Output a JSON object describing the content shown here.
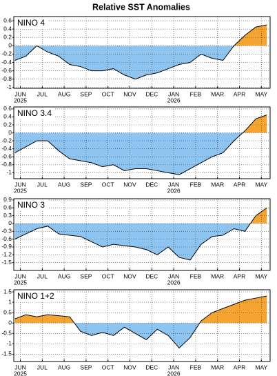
{
  "title": "Relative SST Anomalies",
  "chart_data": [
    {
      "type": "area",
      "title": "NINO 4",
      "x": [
        -0.25,
        0.25,
        0.75,
        1.25,
        1.75,
        2.25,
        2.75,
        3.25,
        3.75,
        4.25,
        4.75,
        5.25,
        5.75,
        6.25,
        6.75,
        7.25,
        7.75,
        8.25,
        8.75,
        9.25,
        9.75,
        10.25,
        10.75,
        11.25
      ],
      "values": [
        -0.35,
        -0.25,
        0.0,
        -0.15,
        -0.25,
        -0.45,
        -0.5,
        -0.6,
        -0.6,
        -0.55,
        -0.7,
        -0.8,
        -0.7,
        -0.65,
        -0.55,
        -0.45,
        -0.4,
        -0.2,
        -0.3,
        -0.35,
        0.0,
        0.25,
        0.45,
        0.5
      ],
      "positive_color": "#f5a431",
      "negative_color": "#8ec4f0",
      "xlim": [
        -0.3,
        11.4
      ],
      "xticks": [
        {
          "value": 0,
          "label": "JUN"
        },
        {
          "value": 1,
          "label": "JUL"
        },
        {
          "value": 2,
          "label": "AUG"
        },
        {
          "value": 3,
          "label": "SEP"
        },
        {
          "value": 4,
          "label": "OCT"
        },
        {
          "value": 5,
          "label": "NOV"
        },
        {
          "value": 6,
          "label": "DEC"
        },
        {
          "value": 7,
          "label": "JAN"
        },
        {
          "value": 8,
          "label": "FEB"
        },
        {
          "value": 9,
          "label": "MAR"
        },
        {
          "value": 10,
          "label": "APR"
        },
        {
          "value": 11,
          "label": "MAY"
        }
      ],
      "year_labels": [
        {
          "value": 0,
          "label": "2025"
        },
        {
          "value": 7,
          "label": "2026"
        }
      ],
      "ylim": [
        -1.02,
        0.7
      ],
      "yticks": [
        0.6,
        0.4,
        0.2,
        0,
        -0.2,
        -0.4,
        -0.6,
        -0.8,
        -1
      ],
      "grid": true
    },
    {
      "type": "area",
      "title": "NINO 3.4",
      "x": [
        -0.25,
        0.25,
        0.75,
        1.25,
        1.75,
        2.25,
        2.75,
        3.25,
        3.75,
        4.25,
        4.75,
        5.25,
        5.75,
        6.25,
        6.75,
        7.25,
        7.75,
        8.25,
        8.75,
        9.25,
        9.75,
        10.25,
        10.75,
        11.25
      ],
      "values": [
        -0.5,
        -0.35,
        -0.2,
        -0.2,
        -0.45,
        -0.65,
        -0.7,
        -0.75,
        -0.85,
        -0.8,
        -0.95,
        -0.9,
        -0.9,
        -0.95,
        -1.0,
        -1.05,
        -0.9,
        -0.75,
        -0.6,
        -0.5,
        -0.2,
        0.05,
        0.35,
        0.45
      ],
      "positive_color": "#f5a431",
      "negative_color": "#8ec4f0",
      "xlim": [
        -0.3,
        11.4
      ],
      "xticks": [
        {
          "value": 0,
          "label": "JUN"
        },
        {
          "value": 1,
          "label": "JUL"
        },
        {
          "value": 2,
          "label": "AUG"
        },
        {
          "value": 3,
          "label": "SEP"
        },
        {
          "value": 4,
          "label": "OCT"
        },
        {
          "value": 5,
          "label": "NOV"
        },
        {
          "value": 6,
          "label": "DEC"
        },
        {
          "value": 7,
          "label": "JAN"
        },
        {
          "value": 8,
          "label": "FEB"
        },
        {
          "value": 9,
          "label": "MAR"
        },
        {
          "value": 10,
          "label": "APR"
        },
        {
          "value": 11,
          "label": "MAY"
        }
      ],
      "year_labels": [
        {
          "value": 0,
          "label": "2025"
        },
        {
          "value": 7,
          "label": "2026"
        }
      ],
      "ylim": [
        -1.15,
        0.65
      ],
      "yticks": [
        0.6,
        0.4,
        0.2,
        0,
        -0.2,
        -0.4,
        -0.6,
        -0.8,
        -1
      ],
      "grid": true
    },
    {
      "type": "area",
      "title": "NINO 3",
      "x": [
        -0.25,
        0.25,
        0.75,
        1.25,
        1.75,
        2.25,
        2.75,
        3.25,
        3.75,
        4.25,
        4.75,
        5.25,
        5.75,
        6.25,
        6.75,
        7.25,
        7.75,
        8.25,
        8.75,
        9.25,
        9.75,
        10.25,
        10.75,
        11.25
      ],
      "values": [
        -0.6,
        -0.4,
        -0.2,
        -0.1,
        -0.4,
        -0.45,
        -0.5,
        -0.7,
        -0.9,
        -0.8,
        -0.85,
        -0.9,
        -1.0,
        -1.2,
        -0.9,
        -1.3,
        -1.4,
        -0.8,
        -0.5,
        -0.45,
        -0.2,
        -0.3,
        0.3,
        0.6
      ],
      "positive_color": "#f5a431",
      "negative_color": "#8ec4f0",
      "xlim": [
        -0.3,
        11.4
      ],
      "xticks": [
        {
          "value": 0,
          "label": "JUN"
        },
        {
          "value": 1,
          "label": "JUL"
        },
        {
          "value": 2,
          "label": "AUG"
        },
        {
          "value": 3,
          "label": "SEP"
        },
        {
          "value": 4,
          "label": "OCT"
        },
        {
          "value": 5,
          "label": "NOV"
        },
        {
          "value": 6,
          "label": "DEC"
        },
        {
          "value": 7,
          "label": "JAN"
        },
        {
          "value": 8,
          "label": "FEB"
        },
        {
          "value": 9,
          "label": "MAR"
        },
        {
          "value": 10,
          "label": "APR"
        },
        {
          "value": 11,
          "label": "MAY"
        }
      ],
      "year_labels": [
        {
          "value": 0,
          "label": "2025"
        },
        {
          "value": 7,
          "label": "2026"
        }
      ],
      "ylim": [
        -1.8,
        0.95
      ],
      "yticks": [
        0.9,
        0.6,
        0.3,
        0,
        -0.3,
        -0.6,
        -0.9,
        -1.2,
        -1.5
      ],
      "grid": true
    },
    {
      "type": "area",
      "title": "NINO 1+2",
      "x": [
        -0.25,
        0.25,
        0.75,
        1.25,
        1.75,
        2.25,
        2.75,
        3.25,
        3.75,
        4.25,
        4.75,
        5.25,
        5.75,
        6.25,
        6.75,
        7.25,
        7.75,
        8.25,
        8.75,
        9.25,
        9.75,
        10.25,
        10.75,
        11.25
      ],
      "values": [
        0.2,
        0.4,
        0.3,
        0.4,
        0.35,
        0.3,
        -0.4,
        -0.6,
        -0.45,
        -0.6,
        -0.2,
        -0.5,
        -0.8,
        -0.3,
        -0.6,
        -1.2,
        -0.7,
        0.1,
        0.5,
        0.7,
        0.9,
        1.1,
        1.2,
        1.3
      ],
      "positive_color": "#f5a431",
      "negative_color": "#8ec4f0",
      "xlim": [
        -0.3,
        11.4
      ],
      "xticks": [
        {
          "value": 0,
          "label": "JUN"
        },
        {
          "value": 1,
          "label": "JUL"
        },
        {
          "value": 2,
          "label": "AUG"
        },
        {
          "value": 3,
          "label": "SEP"
        },
        {
          "value": 4,
          "label": "OCT"
        },
        {
          "value": 5,
          "label": "NOV"
        },
        {
          "value": 6,
          "label": "DEC"
        },
        {
          "value": 7,
          "label": "JAN"
        },
        {
          "value": 8,
          "label": "FEB"
        },
        {
          "value": 9,
          "label": "MAR"
        },
        {
          "value": 10,
          "label": "APR"
        },
        {
          "value": 11,
          "label": "MAY"
        }
      ],
      "year_labels": [
        {
          "value": 0,
          "label": "2025"
        },
        {
          "value": 7,
          "label": "2026"
        }
      ],
      "ylim": [
        -1.85,
        1.6
      ],
      "yticks": [
        1.5,
        1,
        0.5,
        0,
        -0.5,
        -1,
        -1.5
      ],
      "grid": true
    }
  ]
}
